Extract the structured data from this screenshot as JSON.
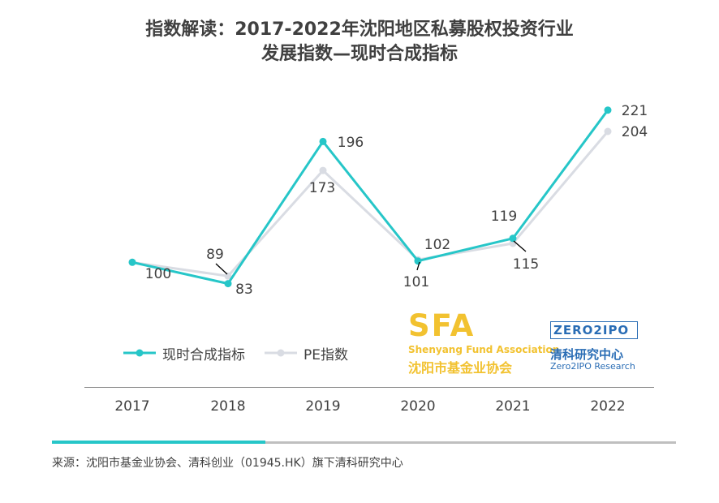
{
  "title": {
    "line1": "指数解读：2017-2022年沈阳地区私募股权投资行业",
    "line2": "发展指数—现时合成指标"
  },
  "colors": {
    "series1": "#26c6c8",
    "series2": "#d9dce3",
    "text": "#404040",
    "sfa": "#f2c230",
    "zero2ipo": "#2a6db5"
  },
  "chart_data": {
    "type": "line",
    "categories": [
      "2017",
      "2018",
      "2019",
      "2020",
      "2021",
      "2022"
    ],
    "series": [
      {
        "name": "现时合成指标",
        "values": [
          100,
          83,
          196,
          101,
          119,
          221
        ]
      },
      {
        "name": "PE指数",
        "values": [
          100,
          89,
          173,
          102,
          115,
          204
        ]
      }
    ],
    "value_labels": {
      "series1": [
        "",
        "83",
        "196",
        "101",
        "119",
        "221"
      ],
      "series2": [
        "100",
        "89",
        "173",
        "102",
        "115",
        "204"
      ]
    },
    "legend": "bottom-left",
    "grid": false
  },
  "logos": {
    "sfa": {
      "big": "SFA",
      "en": "Shenyang Fund Association",
      "cn": "沈阳市基金业协会"
    },
    "zero2ipo": {
      "text": "ZERO2IPO",
      "cn": "清科研究中心",
      "en": "Zero2IPO Research"
    }
  },
  "source": "来源：沈阳市基金业协会、清科创业（01945.HK）旗下清科研究中心"
}
